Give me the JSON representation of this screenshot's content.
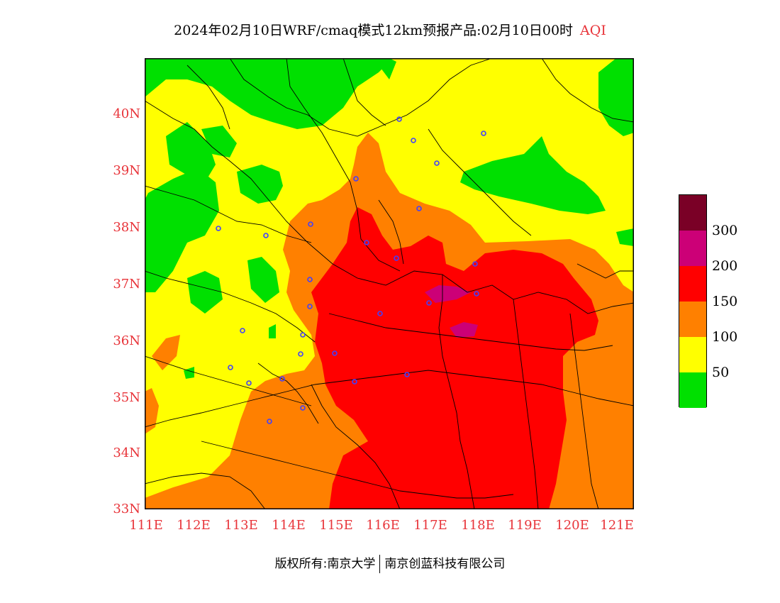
{
  "title": {
    "text": "2024年02月10日WRF/cmaq模式12km预报产品:02月10日00时",
    "variable": "AQI"
  },
  "axes": {
    "lat_labels": [
      "40N",
      "39N",
      "38N",
      "37N",
      "36N",
      "35N",
      "34N",
      "33N"
    ],
    "lon_labels": [
      "111E",
      "112E",
      "113E",
      "114E",
      "115E",
      "116E",
      "117E",
      "118E",
      "119E",
      "120E",
      "121E"
    ]
  },
  "legend": {
    "levels": [
      "300",
      "200",
      "150",
      "100",
      "50"
    ],
    "colors": [
      "#7a0026",
      "#cc0077",
      "#ff0000",
      "#ff8000",
      "#ffff00",
      "#00e000"
    ]
  },
  "footer": {
    "left": "版权所有:南京大学",
    "right": "南京创蓝科技有限公司"
  }
}
